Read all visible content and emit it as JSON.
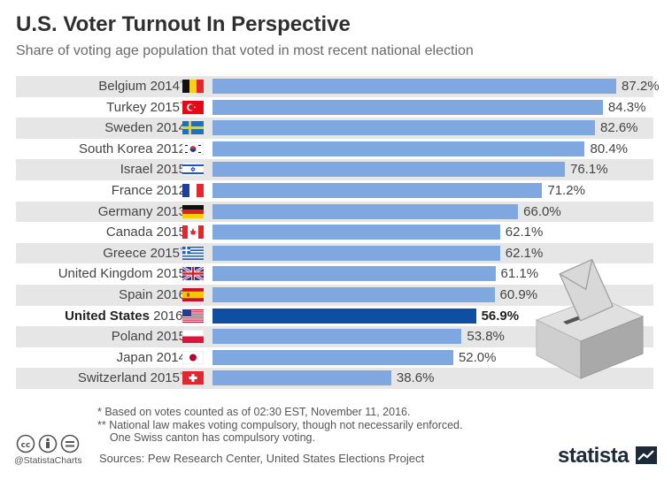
{
  "title": "U.S. Voter Turnout In Perspective",
  "subtitle": "Share of voting age population that voted in most recent national election",
  "colors": {
    "bar": "#7fa8e0",
    "highlight": "#0e4fa3",
    "stripe": "#e6e6e6"
  },
  "chart_data": {
    "type": "bar",
    "orientation": "horizontal",
    "xlim": [
      0,
      100
    ],
    "highlight": "United States",
    "rows": [
      {
        "country": "Belgium",
        "year": "2014",
        "mark": "**",
        "value": 87.2,
        "label": "87.2%",
        "flag": "flag-belgium-icon"
      },
      {
        "country": "Turkey",
        "year": "2015",
        "mark": "**",
        "value": 84.3,
        "label": "84.3%",
        "flag": "flag-turkey-icon"
      },
      {
        "country": "Sweden",
        "year": "2014",
        "mark": "",
        "value": 82.6,
        "label": "82.6%",
        "flag": "flag-sweden-icon"
      },
      {
        "country": "South Korea",
        "year": "2012",
        "mark": "",
        "value": 80.4,
        "label": "80.4%",
        "flag": "flag-south-korea-icon"
      },
      {
        "country": "Israel",
        "year": "2015",
        "mark": "",
        "value": 76.1,
        "label": "76.1%",
        "flag": "flag-israel-icon"
      },
      {
        "country": "France",
        "year": "2012",
        "mark": "",
        "value": 71.2,
        "label": "71.2%",
        "flag": "flag-france-icon"
      },
      {
        "country": "Germany",
        "year": "2013",
        "mark": "",
        "value": 66.0,
        "label": "66.0%",
        "flag": "flag-germany-icon"
      },
      {
        "country": "Canada",
        "year": "2015",
        "mark": "",
        "value": 62.1,
        "label": "62.1%",
        "flag": "flag-canada-icon"
      },
      {
        "country": "Greece",
        "year": "2015",
        "mark": "**",
        "value": 62.1,
        "label": "62.1%",
        "flag": "flag-greece-icon"
      },
      {
        "country": "United Kingdom",
        "year": "2015",
        "mark": "",
        "value": 61.1,
        "label": "61.1%",
        "flag": "flag-uk-icon"
      },
      {
        "country": "Spain",
        "year": "2016",
        "mark": "",
        "value": 60.9,
        "label": "60.9%",
        "flag": "flag-spain-icon"
      },
      {
        "country": "United States",
        "year": "2016",
        "mark": "*",
        "value": 56.9,
        "label": "56.9%",
        "flag": "flag-usa-icon"
      },
      {
        "country": "Poland",
        "year": "2015",
        "mark": "",
        "value": 53.8,
        "label": "53.8%",
        "flag": "flag-poland-icon"
      },
      {
        "country": "Japan",
        "year": "2014",
        "mark": "",
        "value": 52.0,
        "label": "52.0%",
        "flag": "flag-japan-icon"
      },
      {
        "country": "Switzerland",
        "year": "2015",
        "mark": "**",
        "value": 38.6,
        "label": "38.6%",
        "flag": "flag-switzerland-icon"
      }
    ]
  },
  "notes": {
    "n1": "*   Based on votes counted as of 02:30 EST, November 11, 2016.",
    "n2": "** National law makes voting compulsory, though not necessarily enforced.",
    "n3": "    One Swiss canton has compulsory voting."
  },
  "source": "Sources: Pew Research Center, United States Elections Project",
  "handle": "@StatistaCharts",
  "brand": "statista",
  "icons": [
    "cc-icon",
    "by-icon",
    "nd-icon",
    "ballot-box-icon",
    "statista-logo-icon"
  ]
}
